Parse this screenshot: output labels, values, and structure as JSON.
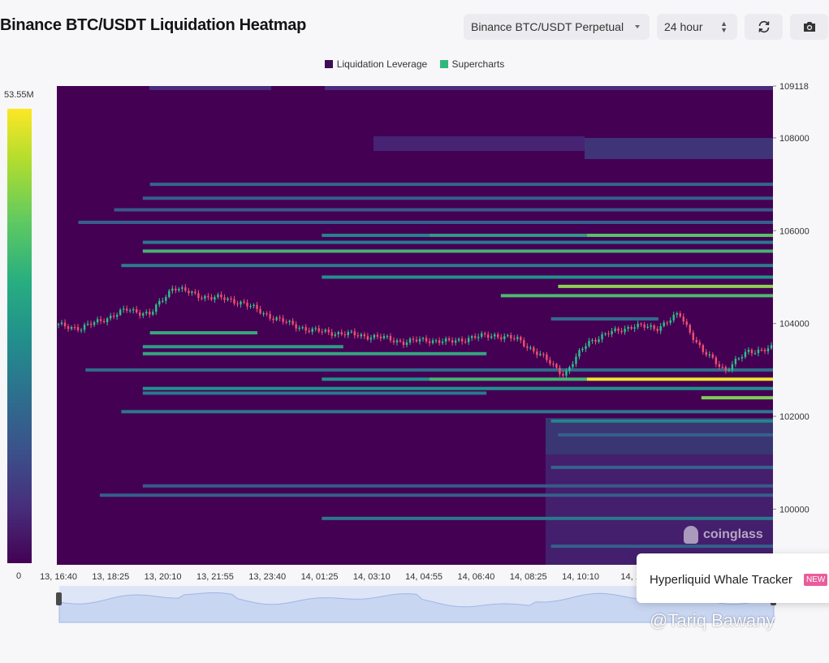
{
  "header": {
    "title": "Binance BTC/USDT Liquidation Heatmap",
    "market_select": "Binance BTC/USDT Perpetual",
    "range_select": "24 hour",
    "refresh_icon": "refresh-icon",
    "camera_icon": "camera-icon"
  },
  "legend": [
    {
      "label": "Liquidation Leverage",
      "color": "#440154"
    },
    {
      "label": "Supercharts",
      "color": "#2fb87a"
    }
  ],
  "colorbar": {
    "max_label": "53.55M",
    "min_label": "0"
  },
  "overlay": {
    "tooltip_text": "Hyperliquid Whale Tracker",
    "tooltip_badge": "NEW",
    "logo_text": "coinglass",
    "watermark": "@Tariq Bawany"
  },
  "chart_data": {
    "type": "heatmap",
    "title": "Binance BTC/USDT Liquidation Heatmap",
    "x_ticks": [
      "13, 16:40",
      "13, 18:25",
      "13, 20:10",
      "13, 21:55",
      "13, 23:40",
      "14, 01:25",
      "14, 03:10",
      "14, 04:55",
      "14, 06:40",
      "14, 08:25",
      "14, 10:10",
      "14, 11"
    ],
    "y_ticks": [
      109118,
      108000,
      106000,
      104000,
      102000,
      100000
    ],
    "ylim": [
      98800,
      109118
    ],
    "colorscale": [
      "#440154",
      "#3b528b",
      "#21918c",
      "#5ec962",
      "#fde725"
    ],
    "color_range": [
      0,
      53550000
    ],
    "liquidation_bands": [
      {
        "price": 107000,
        "start": 0.13,
        "end": 1.0,
        "intensity": 0.33
      },
      {
        "price": 106700,
        "start": 0.12,
        "end": 1.0,
        "intensity": 0.3
      },
      {
        "price": 106450,
        "start": 0.08,
        "end": 1.0,
        "intensity": 0.28
      },
      {
        "price": 106180,
        "start": 0.03,
        "end": 1.0,
        "intensity": 0.3
      },
      {
        "price": 105900,
        "start": 0.37,
        "end": 0.52,
        "intensity": 0.45
      },
      {
        "price": 105900,
        "start": 0.52,
        "end": 0.74,
        "intensity": 0.55
      },
      {
        "price": 105900,
        "start": 0.74,
        "end": 1.0,
        "intensity": 0.72
      },
      {
        "price": 105750,
        "start": 0.12,
        "end": 1.0,
        "intensity": 0.4
      },
      {
        "price": 105560,
        "start": 0.12,
        "end": 1.0,
        "intensity": 0.65
      },
      {
        "price": 105250,
        "start": 0.09,
        "end": 1.0,
        "intensity": 0.42
      },
      {
        "price": 105000,
        "start": 0.37,
        "end": 1.0,
        "intensity": 0.5
      },
      {
        "price": 104800,
        "start": 0.7,
        "end": 1.0,
        "intensity": 0.82
      },
      {
        "price": 104600,
        "start": 0.62,
        "end": 1.0,
        "intensity": 0.68
      },
      {
        "price": 104100,
        "start": 0.69,
        "end": 0.84,
        "intensity": 0.35
      },
      {
        "price": 103800,
        "start": 0.13,
        "end": 0.28,
        "intensity": 0.6
      },
      {
        "price": 103500,
        "start": 0.12,
        "end": 0.4,
        "intensity": 0.55
      },
      {
        "price": 103350,
        "start": 0.12,
        "end": 0.6,
        "intensity": 0.58
      },
      {
        "price": 103000,
        "start": 0.04,
        "end": 1.0,
        "intensity": 0.35
      },
      {
        "price": 102800,
        "start": 0.37,
        "end": 0.52,
        "intensity": 0.5
      },
      {
        "price": 102800,
        "start": 0.52,
        "end": 0.74,
        "intensity": 0.65
      },
      {
        "price": 102800,
        "start": 0.74,
        "end": 1.0,
        "intensity": 0.98
      },
      {
        "price": 102600,
        "start": 0.12,
        "end": 1.0,
        "intensity": 0.5
      },
      {
        "price": 102500,
        "start": 0.12,
        "end": 0.6,
        "intensity": 0.4
      },
      {
        "price": 102400,
        "start": 0.9,
        "end": 1.0,
        "intensity": 0.8
      },
      {
        "price": 102100,
        "start": 0.09,
        "end": 1.0,
        "intensity": 0.4
      },
      {
        "price": 101900,
        "start": 0.69,
        "end": 1.0,
        "intensity": 0.45
      },
      {
        "price": 101600,
        "start": 0.7,
        "end": 1.0,
        "intensity": 0.3
      },
      {
        "price": 100900,
        "start": 0.69,
        "end": 1.0,
        "intensity": 0.32
      },
      {
        "price": 100500,
        "start": 0.12,
        "end": 1.0,
        "intensity": 0.28
      },
      {
        "price": 100300,
        "start": 0.06,
        "end": 1.0,
        "intensity": 0.3
      },
      {
        "price": 99800,
        "start": 0.37,
        "end": 1.0,
        "intensity": 0.4
      },
      {
        "price": 99200,
        "start": 0.69,
        "end": 1.0,
        "intensity": 0.3
      }
    ],
    "price_path": [
      103960,
      103900,
      104100,
      104300,
      104200,
      104800,
      104600,
      104550,
      104450,
      104200,
      104000,
      103850,
      103800,
      103750,
      103700,
      103600,
      103650,
      103600,
      103700,
      103750,
      103650,
      103300,
      102900,
      103600,
      103800,
      103950,
      103900,
      104200,
      103400,
      103000,
      103400,
      103460
    ]
  }
}
